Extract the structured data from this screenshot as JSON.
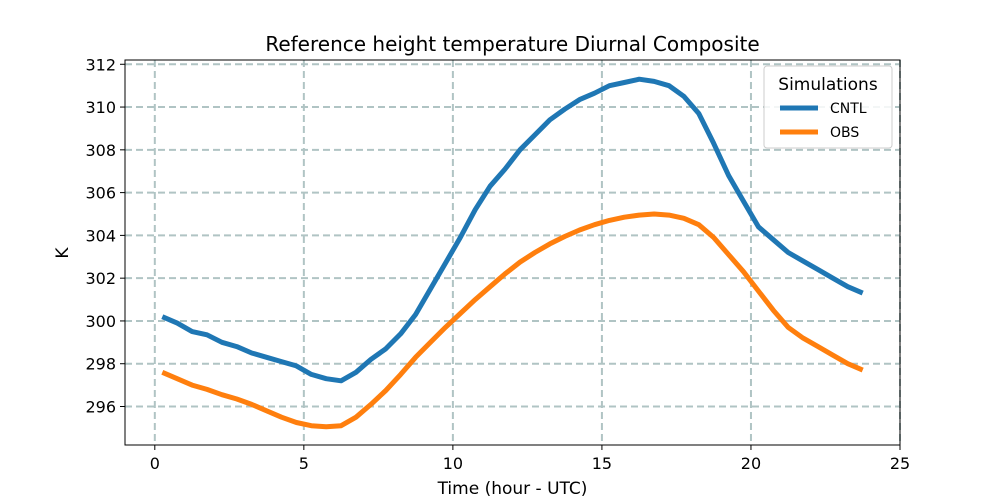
{
  "chart_data": {
    "type": "line",
    "title": "Reference height temperature Diurnal Composite",
    "xlabel": "Time (hour - UTC)",
    "ylabel": "K",
    "xlim": [
      -1,
      25
    ],
    "ylim": [
      294.2,
      312.2
    ],
    "xticks": [
      0,
      5,
      10,
      15,
      20,
      25
    ],
    "yticks": [
      296,
      298,
      300,
      302,
      304,
      306,
      308,
      310,
      312
    ],
    "grid": true,
    "legend": {
      "title": "Simulations",
      "position": "top-right"
    },
    "x": [
      0.25,
      0.75,
      1.25,
      1.75,
      2.25,
      2.75,
      3.25,
      3.75,
      4.25,
      4.75,
      5.25,
      5.75,
      6.25,
      6.75,
      7.25,
      7.75,
      8.25,
      8.75,
      9.25,
      9.75,
      10.25,
      10.75,
      11.25,
      11.75,
      12.25,
      12.75,
      13.25,
      13.75,
      14.25,
      14.75,
      15.25,
      15.75,
      16.25,
      16.75,
      17.25,
      17.75,
      18.25,
      18.75,
      19.25,
      19.75,
      20.25,
      20.75,
      21.25,
      21.75,
      22.25,
      22.75,
      23.25,
      23.75
    ],
    "series": [
      {
        "name": "CNTL",
        "color": "#1f77b4",
        "values": [
          300.2,
          299.9,
          299.5,
          299.35,
          299.0,
          298.8,
          298.5,
          298.3,
          298.1,
          297.9,
          297.5,
          297.3,
          297.2,
          297.6,
          298.2,
          298.7,
          299.4,
          300.3,
          301.5,
          302.7,
          303.9,
          305.2,
          306.3,
          307.1,
          308.0,
          308.7,
          309.4,
          309.9,
          310.35,
          310.65,
          311.0,
          311.15,
          311.3,
          311.2,
          311.0,
          310.5,
          309.7,
          308.3,
          306.8,
          305.6,
          304.4,
          303.8,
          303.2,
          302.8,
          302.4,
          302.0,
          301.6,
          301.3
        ]
      },
      {
        "name": "OBS",
        "color": "#ff7f0e",
        "values": [
          297.6,
          297.3,
          297.0,
          296.8,
          296.55,
          296.35,
          296.1,
          295.8,
          295.5,
          295.25,
          295.1,
          295.05,
          295.1,
          295.5,
          296.1,
          296.75,
          297.5,
          298.3,
          299.0,
          299.7,
          300.35,
          301.0,
          301.6,
          302.2,
          302.75,
          303.2,
          303.6,
          303.95,
          304.25,
          304.5,
          304.7,
          304.85,
          304.95,
          305.0,
          304.95,
          304.8,
          304.5,
          303.9,
          303.1,
          302.3,
          301.4,
          300.5,
          299.7,
          299.2,
          298.8,
          298.4,
          298.0,
          297.7
        ]
      }
    ]
  }
}
